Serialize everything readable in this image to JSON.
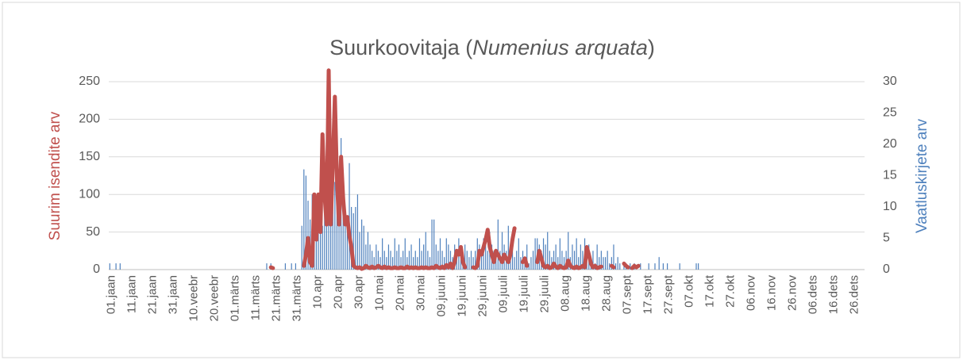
{
  "chart_data": {
    "type": "bar-line",
    "title_parts": [
      "Suurkoovitaja (",
      "Numenius arquata",
      ")"
    ],
    "y_label": "Suurim isendite arv",
    "y2_label": "Vaatluskirjete arv",
    "ylim": [
      0,
      250
    ],
    "yticks": [
      0,
      50,
      100,
      150,
      200,
      250
    ],
    "y2lim": [
      0,
      30
    ],
    "y2ticks": [
      0,
      5,
      10,
      15,
      20,
      25,
      30
    ],
    "grid": true,
    "categories": [
      "01.jaan",
      null,
      null,
      null,
      null,
      null,
      null,
      null,
      null,
      null,
      "11.jaan",
      null,
      null,
      null,
      null,
      null,
      null,
      null,
      null,
      null,
      "21.jaan",
      null,
      null,
      null,
      null,
      null,
      null,
      null,
      null,
      null,
      "31.jaan",
      null,
      null,
      null,
      null,
      null,
      null,
      null,
      null,
      null,
      "10.veebr",
      null,
      null,
      null,
      null,
      null,
      null,
      null,
      null,
      null,
      "20.veebr",
      null,
      null,
      null,
      null,
      null,
      null,
      null,
      null,
      null,
      "01.märts",
      null,
      null,
      null,
      null,
      null,
      null,
      null,
      null,
      null,
      "11.märts",
      null,
      null,
      null,
      null,
      null,
      null,
      null,
      null,
      null,
      "21.märts",
      null,
      null,
      null,
      null,
      null,
      null,
      null,
      null,
      null,
      "31.märts",
      null,
      null,
      null,
      null,
      null,
      null,
      null,
      null,
      null,
      "10.apr",
      null,
      null,
      null,
      null,
      null,
      null,
      null,
      null,
      null,
      "20.apr",
      null,
      null,
      null,
      null,
      null,
      null,
      null,
      null,
      null,
      "30.apr",
      null,
      null,
      null,
      null,
      null,
      null,
      null,
      null,
      null,
      "10.mai",
      null,
      null,
      null,
      null,
      null,
      null,
      null,
      null,
      null,
      "20.mai",
      null,
      null,
      null,
      null,
      null,
      null,
      null,
      null,
      null,
      "30.mai",
      null,
      null,
      null,
      null,
      null,
      null,
      null,
      null,
      null,
      "09.juuni",
      null,
      null,
      null,
      null,
      null,
      null,
      null,
      null,
      null,
      "19.juuni",
      null,
      null,
      null,
      null,
      null,
      null,
      null,
      null,
      null,
      "29.juuni",
      null,
      null,
      null,
      null,
      null,
      null,
      null,
      null,
      null,
      "09.juuli",
      null,
      null,
      null,
      null,
      null,
      null,
      null,
      null,
      null,
      "19.juuli",
      null,
      null,
      null,
      null,
      null,
      null,
      null,
      null,
      null,
      "29.juuli",
      null,
      null,
      null,
      null,
      null,
      null,
      null,
      null,
      null,
      "08.aug",
      null,
      null,
      null,
      null,
      null,
      null,
      null,
      null,
      null,
      "18.aug",
      null,
      null,
      null,
      null,
      null,
      null,
      null,
      null,
      null,
      "28.aug",
      null,
      null,
      null,
      null,
      null,
      null,
      null,
      null,
      null,
      "07.sept",
      null,
      null,
      null,
      null,
      null,
      null,
      null,
      null,
      null,
      "17.sept",
      null,
      null,
      null,
      null,
      null,
      null,
      null,
      null,
      null,
      "27.sept",
      null,
      null,
      null,
      null,
      null,
      null,
      null,
      null,
      null,
      "07.okt",
      null,
      null,
      null,
      null,
      null,
      null,
      null,
      null,
      null,
      "17.okt",
      null,
      null,
      null,
      null,
      null,
      null,
      null,
      null,
      null,
      "27.okt",
      null,
      null,
      null,
      null,
      null,
      null,
      null,
      null,
      null,
      "06.nov",
      null,
      null,
      null,
      null,
      null,
      null,
      null,
      null,
      null,
      "16.nov",
      null,
      null,
      null,
      null,
      null,
      null,
      null,
      null,
      null,
      "26.nov",
      null,
      null,
      null,
      null,
      null,
      null,
      null,
      null,
      null,
      "06.dets",
      null,
      null,
      null,
      null,
      null,
      null,
      null,
      null,
      null,
      "16.dets",
      null,
      null,
      null,
      null,
      null,
      null,
      null,
      null,
      null,
      "26.dets",
      null,
      null,
      null,
      null,
      null
    ],
    "series": [
      {
        "type": "line",
        "axis": "y",
        "color": "#c0504d",
        "values": [
          null,
          null,
          null,
          null,
          null,
          null,
          null,
          null,
          null,
          null,
          null,
          null,
          null,
          null,
          null,
          null,
          null,
          null,
          null,
          null,
          null,
          null,
          null,
          null,
          null,
          null,
          null,
          null,
          null,
          null,
          null,
          null,
          null,
          null,
          null,
          null,
          null,
          null,
          null,
          null,
          null,
          null,
          null,
          null,
          null,
          null,
          null,
          null,
          null,
          null,
          null,
          null,
          null,
          null,
          null,
          null,
          null,
          null,
          null,
          null,
          null,
          null,
          null,
          null,
          null,
          null,
          null,
          null,
          null,
          null,
          null,
          null,
          null,
          null,
          null,
          null,
          null,
          null,
          3,
          2,
          null,
          null,
          null,
          null,
          null,
          null,
          null,
          null,
          null,
          null,
          null,
          null,
          null,
          null,
          5,
          20,
          42,
          10,
          5,
          100,
          40,
          100,
          50,
          180,
          100,
          60,
          265,
          60,
          140,
          230,
          120,
          60,
          150,
          95,
          60,
          70,
          45,
          30,
          5,
          3,
          2,
          3,
          1,
          2,
          5,
          3,
          2,
          4,
          2,
          3,
          5,
          3,
          2,
          4,
          2,
          3,
          2,
          2,
          3,
          2,
          2,
          3,
          2,
          2,
          4,
          2,
          3,
          2,
          3,
          2,
          2,
          3,
          2,
          3,
          2,
          2,
          3,
          2,
          5,
          3,
          2,
          4,
          2,
          6,
          3,
          8,
          2,
          10,
          25,
          20,
          30,
          10,
          3,
          null,
          null,
          null,
          3,
          2,
          5,
          25,
          20,
          30,
          40,
          53,
          30,
          20,
          10,
          25,
          20,
          15,
          10,
          20,
          15,
          10,
          20,
          40,
          55,
          null,
          null,
          null,
          10,
          15,
          5,
          null,
          null,
          null,
          null,
          10,
          25,
          15,
          5,
          3,
          5,
          2,
          3,
          8,
          4,
          2,
          5,
          3,
          2,
          3,
          12,
          5,
          3,
          2,
          4,
          2,
          3,
          5,
          3,
          30,
          20,
          8,
          3,
          5,
          2,
          3,
          4,
          null,
          null,
          null,
          null,
          5,
          3,
          null,
          null,
          null,
          null,
          8,
          5,
          3,
          null,
          2,
          5,
          3,
          5,
          null,
          null,
          null,
          null,
          null,
          null,
          null,
          null,
          null,
          null,
          null,
          null,
          null,
          null,
          null,
          null,
          null,
          null,
          null,
          null,
          null,
          null,
          null,
          null,
          null,
          null,
          null,
          null,
          null,
          null,
          null,
          null,
          null,
          null,
          null,
          null,
          null,
          null,
          null,
          null,
          null,
          null,
          null,
          null,
          null,
          null,
          null,
          null,
          null,
          null,
          null,
          null,
          null,
          null,
          null,
          null,
          null,
          null,
          null,
          null,
          null,
          null,
          null,
          null,
          null,
          null,
          null,
          null,
          null,
          null,
          null,
          null,
          null,
          null,
          null,
          null,
          null,
          null,
          null,
          null,
          null,
          null,
          null,
          null,
          null,
          null,
          null,
          null,
          null,
          null,
          null,
          null,
          null,
          null,
          null,
          null,
          null,
          null,
          null,
          null,
          null,
          null,
          null,
          null,
          null,
          null,
          null,
          null,
          null
        ]
      },
      {
        "type": "bar",
        "axis": "y2",
        "color": "#4f81bd",
        "values": [
          1,
          0,
          0,
          1,
          0,
          1,
          0,
          0,
          0,
          0,
          0,
          0,
          0,
          0,
          0,
          0,
          0,
          0,
          0,
          0,
          0,
          0,
          0,
          0,
          0,
          0,
          0,
          0,
          0,
          0,
          0,
          0,
          0,
          0,
          0,
          0,
          0,
          0,
          0,
          0,
          0,
          0,
          0,
          0,
          0,
          0,
          0,
          0,
          0,
          0,
          0,
          0,
          0,
          0,
          0,
          0,
          0,
          0,
          0,
          0,
          0,
          0,
          0,
          0,
          0,
          0,
          0,
          0,
          0,
          0,
          0,
          0,
          0,
          0,
          0,
          0,
          1,
          0,
          1,
          0,
          0,
          0,
          0,
          0,
          0,
          1,
          0,
          0,
          1,
          0,
          1,
          0,
          0,
          7,
          16,
          15,
          11,
          8,
          12,
          11,
          7,
          12,
          10,
          7,
          13,
          10,
          14,
          13,
          17,
          14,
          16,
          12,
          21,
          12,
          9,
          8,
          17,
          10,
          9,
          10,
          12,
          6,
          8,
          7,
          4,
          6,
          4,
          3,
          2,
          4,
          3,
          2,
          5,
          3,
          2,
          4,
          3,
          2,
          5,
          3,
          4,
          2,
          3,
          5,
          2,
          3,
          4,
          2,
          3,
          2,
          5,
          3,
          4,
          6,
          3,
          2,
          8,
          8,
          4,
          3,
          5,
          3,
          2,
          5,
          4,
          3,
          2,
          4,
          3,
          5,
          3,
          2,
          4,
          3,
          2,
          3,
          2,
          3,
          5,
          4,
          3,
          5,
          4,
          3,
          6,
          4,
          3,
          2,
          8,
          3,
          6,
          4,
          3,
          7,
          3,
          4,
          2,
          3,
          5,
          2,
          3,
          2,
          4,
          1,
          2,
          3,
          5,
          5,
          4,
          3,
          5,
          4,
          6,
          3,
          2,
          3,
          4,
          2,
          5,
          3,
          2,
          3,
          6,
          2,
          4,
          3,
          5,
          2,
          4,
          3,
          5,
          3,
          4,
          2,
          3,
          1,
          4,
          2,
          3,
          2,
          2,
          3,
          1,
          2,
          4,
          1,
          2,
          1,
          0,
          1,
          1,
          0,
          1,
          0,
          1,
          0,
          0,
          1,
          0,
          0,
          0,
          1,
          0,
          0,
          1,
          0,
          2,
          0,
          1,
          0,
          1,
          0,
          0,
          0,
          0,
          0,
          1,
          0,
          0,
          0,
          0,
          0,
          0,
          0,
          1,
          1,
          0,
          0,
          0,
          0,
          0,
          0,
          0,
          0,
          0,
          0,
          0,
          0,
          0,
          0,
          0,
          0,
          0,
          0,
          0,
          0,
          0,
          0,
          0,
          0,
          0,
          0,
          0,
          0,
          0,
          0,
          0,
          0,
          0,
          0,
          0,
          0,
          0,
          0,
          0,
          0,
          0,
          0,
          0,
          0,
          0,
          0,
          0,
          0,
          0,
          0,
          0,
          0,
          0,
          0,
          0,
          0,
          0,
          0,
          0,
          0,
          0,
          0,
          0,
          0,
          0,
          0,
          0,
          0,
          0,
          0,
          0,
          0,
          0,
          0,
          0,
          0,
          0,
          0,
          0,
          0
        ]
      }
    ]
  }
}
